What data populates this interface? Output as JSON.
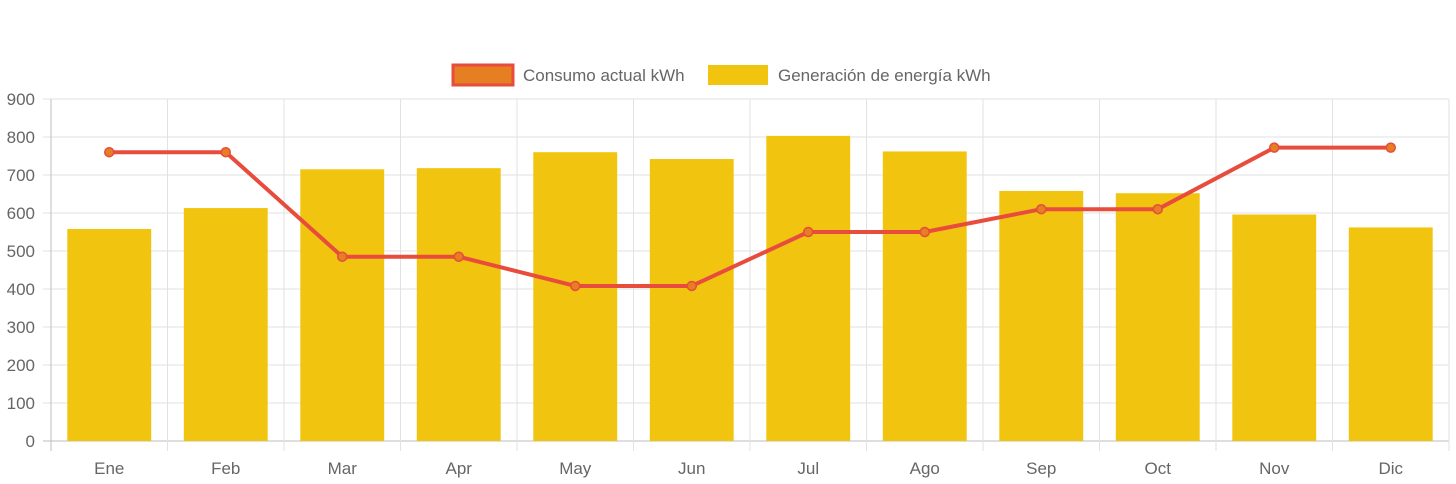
{
  "chart_data": {
    "type": "bar",
    "categories": [
      "Ene",
      "Feb",
      "Mar",
      "Apr",
      "May",
      "Jun",
      "Jul",
      "Ago",
      "Sep",
      "Oct",
      "Nov",
      "Dic"
    ],
    "series": [
      {
        "name": "Consumo actual kWh",
        "type": "line",
        "color": "#e74c3c",
        "point_color": "#e67e22",
        "values": [
          760,
          760,
          485,
          485,
          408,
          408,
          550,
          550,
          610,
          610,
          772,
          772
        ]
      },
      {
        "name": "Generación de energía kWh",
        "type": "bar",
        "color": "#f1c40f",
        "values": [
          558,
          613,
          715,
          718,
          760,
          742,
          803,
          762,
          658,
          652,
          596,
          562
        ]
      }
    ],
    "ylim": [
      0,
      900
    ],
    "yticks": [
      0,
      100,
      200,
      300,
      400,
      500,
      600,
      700,
      800,
      900
    ],
    "grid": true,
    "legend_position": "top"
  }
}
